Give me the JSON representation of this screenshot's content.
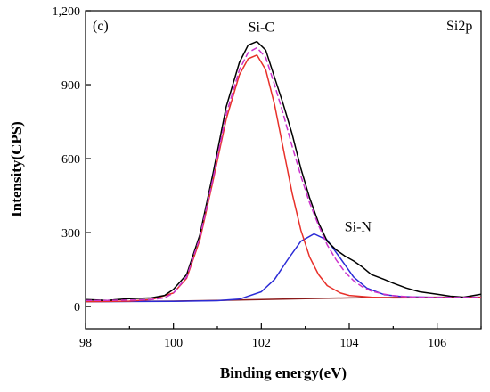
{
  "chart_data": {
    "type": "line",
    "panel_label": "(c)",
    "region_label": "Si2p",
    "xlabel": "Binding energy(eV)",
    "ylabel": "Intensity(CPS)",
    "xlim": [
      98,
      107
    ],
    "ylim": [
      -90,
      1200
    ],
    "x_ticks": [
      98,
      100,
      102,
      104,
      106
    ],
    "y_ticks": [
      0,
      300,
      600,
      900,
      1200
    ],
    "y_tick_labels": [
      "0",
      "300",
      "600",
      "900",
      "1,200"
    ],
    "grid": false,
    "annotations": [
      {
        "text": "Si-C",
        "x": 102.0,
        "y": 1115
      },
      {
        "text": "Si-N",
        "x": 104.2,
        "y": 305
      }
    ],
    "series": [
      {
        "role": "raw",
        "color": "#000000",
        "x": [
          98.0,
          98.5,
          99.0,
          99.5,
          99.8,
          100.0,
          100.3,
          100.6,
          100.9,
          101.2,
          101.5,
          101.7,
          101.9,
          102.1,
          102.3,
          102.5,
          102.7,
          102.9,
          103.1,
          103.3,
          103.5,
          103.7,
          103.9,
          104.1,
          104.3,
          104.5,
          104.8,
          105.0,
          105.3,
          105.6,
          106.0,
          106.3,
          106.6,
          107.0
        ],
        "y": [
          28,
          25,
          32,
          35,
          45,
          70,
          130,
          290,
          540,
          810,
          990,
          1060,
          1075,
          1040,
          930,
          820,
          700,
          560,
          440,
          340,
          265,
          230,
          205,
          185,
          160,
          130,
          110,
          95,
          75,
          60,
          50,
          42,
          38,
          50
        ]
      },
      {
        "role": "envelope-fit",
        "color": "#cc33cc",
        "x": [
          98.0,
          98.5,
          99.0,
          99.5,
          99.8,
          100.0,
          100.3,
          100.6,
          100.9,
          101.2,
          101.5,
          101.7,
          101.9,
          102.1,
          102.3,
          102.5,
          102.7,
          102.9,
          103.1,
          103.3,
          103.5,
          103.7,
          103.9,
          104.1,
          104.3,
          104.5,
          104.8,
          105.0,
          105.3,
          105.6,
          106.0,
          106.3,
          106.6,
          107.0
        ],
        "y": [
          25,
          25,
          26,
          28,
          35,
          55,
          120,
          280,
          520,
          780,
          960,
          1030,
          1050,
          1010,
          900,
          780,
          650,
          530,
          420,
          330,
          250,
          190,
          140,
          105,
          80,
          63,
          50,
          44,
          40,
          38,
          37,
          37,
          37,
          37
        ]
      },
      {
        "role": "peak-Si-C",
        "color": "#e8302a",
        "x": [
          98.0,
          99.0,
          99.5,
          100.0,
          100.3,
          100.6,
          100.9,
          101.2,
          101.5,
          101.7,
          101.9,
          102.1,
          102.3,
          102.5,
          102.7,
          102.9,
          103.1,
          103.3,
          103.5,
          103.8,
          104.0,
          104.5,
          105.0,
          106.0,
          107.0
        ],
        "y": [
          20,
          22,
          28,
          55,
          115,
          270,
          510,
          760,
          940,
          1005,
          1020,
          960,
          820,
          640,
          460,
          310,
          200,
          130,
          85,
          55,
          45,
          38,
          35,
          36,
          37
        ]
      },
      {
        "role": "peak-Si-N",
        "color": "#2b2bd6",
        "x": [
          98.0,
          100.0,
          101.0,
          101.5,
          102.0,
          102.3,
          102.6,
          102.9,
          103.2,
          103.5,
          103.8,
          104.1,
          104.4,
          104.8,
          105.2,
          106.0,
          107.0
        ],
        "y": [
          20,
          21,
          24,
          30,
          60,
          110,
          190,
          265,
          295,
          270,
          195,
          120,
          75,
          48,
          40,
          37,
          37
        ]
      },
      {
        "role": "background",
        "color": "#8b1a1a",
        "x": [
          98.0,
          100.0,
          101.0,
          102.0,
          103.0,
          104.0,
          105.0,
          106.0,
          107.0
        ],
        "y": [
          20,
          22,
          25,
          28,
          32,
          35,
          37,
          38,
          38
        ]
      }
    ]
  }
}
